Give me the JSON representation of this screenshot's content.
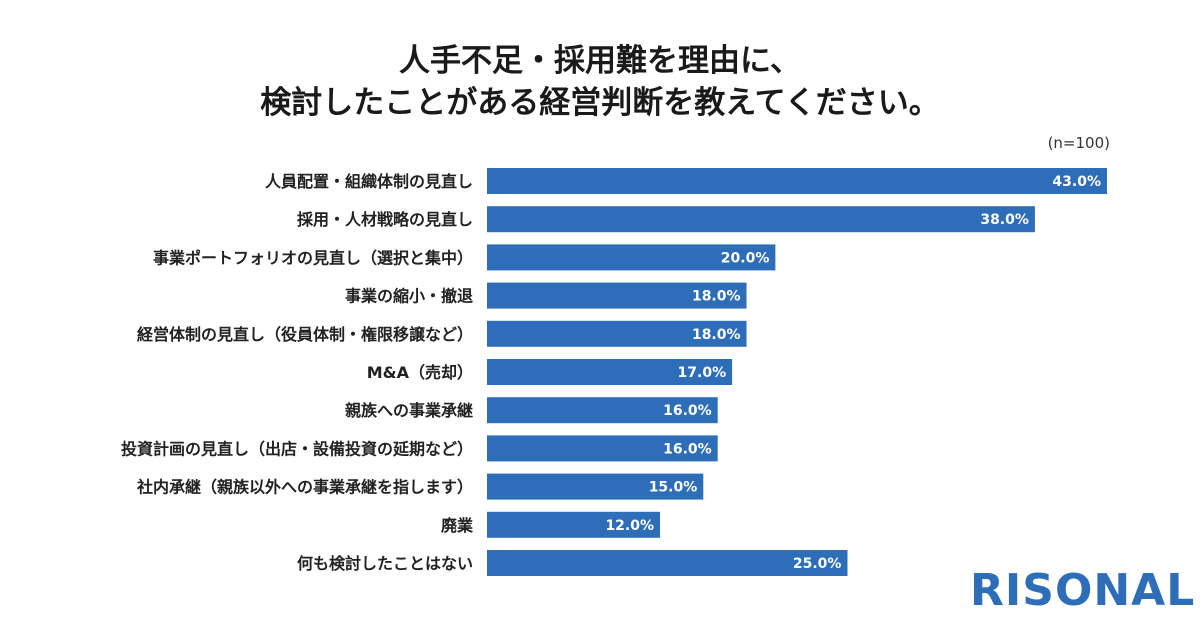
{
  "title_lines": [
    "人手不足・採用難を理由に、",
    "検討したことがある経営判断を教えてください。"
  ],
  "sample_size": "(n=100)",
  "logo_text": "RISONAL",
  "colors": {
    "bar": "#2e6db8",
    "logo": "#2e6db8",
    "value_text": "#ffffff"
  },
  "chart_data": {
    "type": "bar",
    "orientation": "horizontal",
    "title": "人手不足・採用難を理由に、検討したことがある経営判断を教えてください。",
    "xlabel": "",
    "ylabel": "",
    "xlim": [
      0,
      43
    ],
    "grid": false,
    "categories": [
      "人員配置・組織体制の見直し",
      "採用・人材戦略の見直し",
      "事業ポートフォリオの見直し（選択と集中）",
      "事業の縮小・撤退",
      "経営体制の見直し（役員体制・権限移譲など）",
      "M&A（売却）",
      "親族への事業承継",
      "投資計画の見直し（出店・設備投資の延期など）",
      "社内承継（親族以外への事業承継を指します）",
      "廃業",
      "何も検討したことはない"
    ],
    "values": [
      43.0,
      38.0,
      20.0,
      18.0,
      18.0,
      17.0,
      16.0,
      16.0,
      15.0,
      12.0,
      25.0
    ],
    "value_labels": [
      "43.0%",
      "38.0%",
      "20.0%",
      "18.0%",
      "18.0%",
      "17.0%",
      "16.0%",
      "16.0%",
      "15.0%",
      "12.0%",
      "25.0%"
    ]
  }
}
